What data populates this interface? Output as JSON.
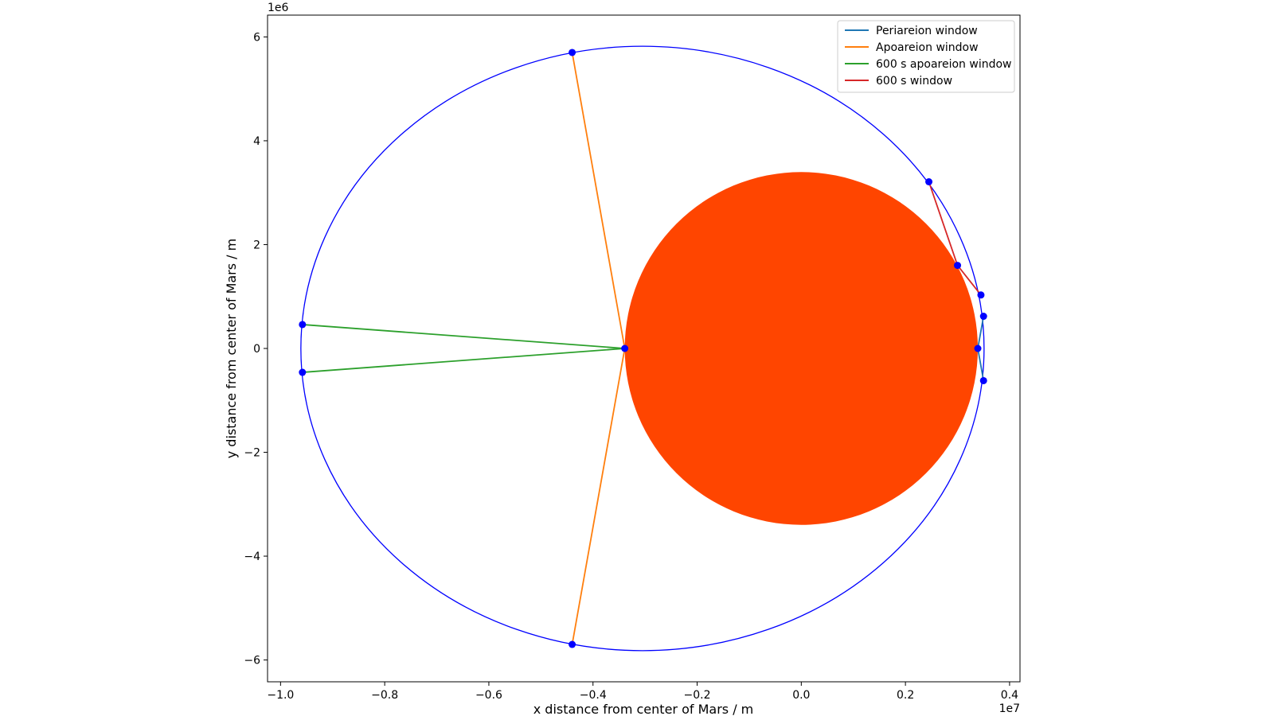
{
  "chart_data": {
    "type": "line",
    "title": "",
    "xlabel": "x distance from center of Mars / m",
    "ylabel": "y distance from center of Mars / m",
    "x_offset_label": "1e7",
    "y_offset_label": "1e6",
    "xlim": [
      -10250000,
      4200000
    ],
    "ylim": [
      -6420000,
      6420000
    ],
    "xticks": [
      -1.0,
      -0.8,
      -0.6,
      -0.4,
      -0.2,
      0.0,
      0.2,
      0.4
    ],
    "xtick_labels": [
      "−1.0",
      "−0.8",
      "−0.6",
      "−0.4",
      "−0.2",
      "0.0",
      "0.2",
      "0.4"
    ],
    "yticks": [
      -6,
      -4,
      -2,
      0,
      2,
      4,
      6
    ],
    "ytick_labels": [
      "−6",
      "−4",
      "−2",
      "0",
      "2",
      "4",
      "6"
    ],
    "grid": false,
    "legend_position": "top-right",
    "mars": {
      "center": [
        0,
        0
      ],
      "radius": 3390000,
      "color": "#ff4500"
    },
    "orbit": {
      "center": [
        -3050000,
        0
      ],
      "semi_major": 6560000,
      "semi_minor": 5820000,
      "color": "#0000ff"
    },
    "series": [
      {
        "name": "Periareion window",
        "color": "#1f77b4",
        "points": [
          [
            3500000,
            620000
          ],
          [
            3390000,
            0
          ],
          [
            3500000,
            -620000
          ]
        ]
      },
      {
        "name": "Apoareion window",
        "color": "#ff7f0e",
        "points": [
          [
            -4400000,
            5700000
          ],
          [
            -3390000,
            0
          ],
          [
            -4400000,
            -5700000
          ]
        ]
      },
      {
        "name": "600 s apoareion window",
        "color": "#2ca02c",
        "points": [
          [
            -9580000,
            460000
          ],
          [
            -3390000,
            0
          ],
          [
            -9580000,
            -460000
          ]
        ]
      },
      {
        "name": "600 s window",
        "color": "#d62728",
        "points": [
          [
            2450000,
            3210000
          ],
          [
            3000000,
            1600000
          ],
          [
            3450000,
            1030000
          ]
        ]
      }
    ],
    "markers": {
      "color": "#0000ff",
      "points": [
        [
          -4400000,
          5700000
        ],
        [
          -4400000,
          -5700000
        ],
        [
          -9580000,
          460000
        ],
        [
          -9580000,
          -460000
        ],
        [
          -3390000,
          0
        ],
        [
          2450000,
          3210000
        ],
        [
          3000000,
          1600000
        ],
        [
          3450000,
          1030000
        ],
        [
          3500000,
          620000
        ],
        [
          3390000,
          0
        ],
        [
          3500000,
          -620000
        ]
      ]
    }
  }
}
